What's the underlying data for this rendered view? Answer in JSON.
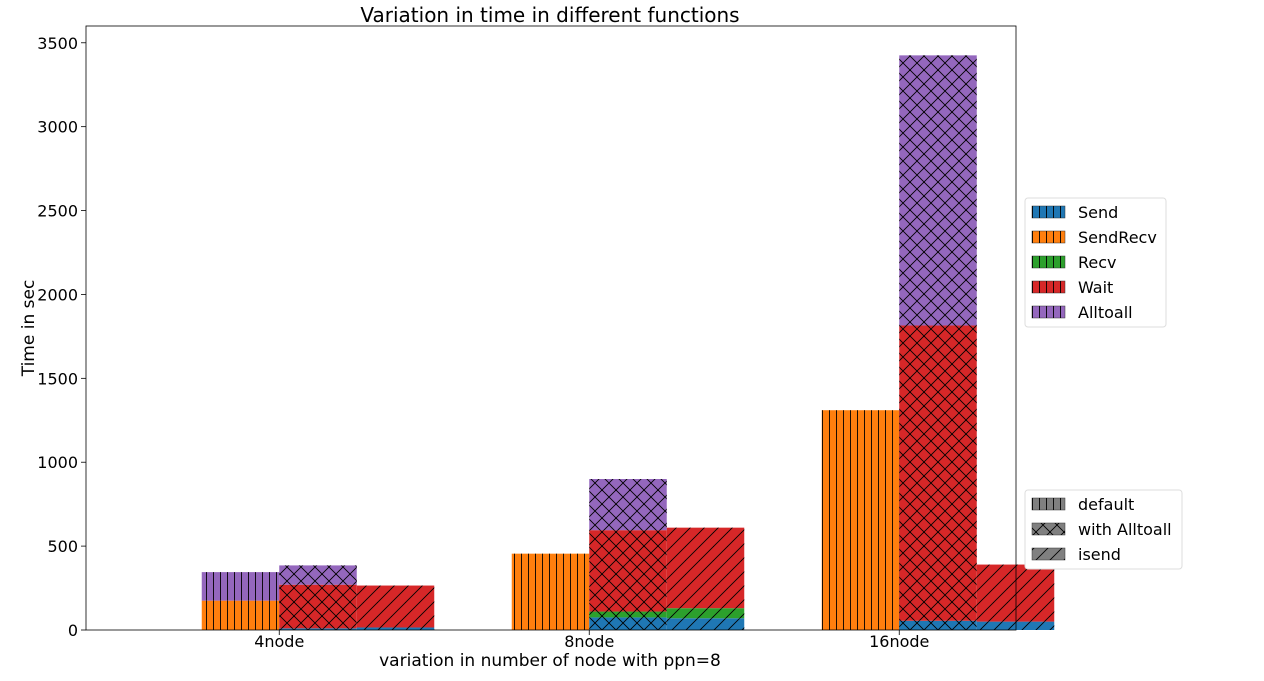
{
  "chart_data": {
    "type": "bar",
    "title": "Variation in time in different functions",
    "xlabel": "variation in number of node with ppn=8",
    "ylabel": "Time in sec",
    "ylim": [
      0,
      3600
    ],
    "yticks": [
      0,
      500,
      1000,
      1500,
      2000,
      2500,
      3000,
      3500
    ],
    "categories": [
      "4node",
      "8node",
      "16node"
    ],
    "stacked": true,
    "grid": false,
    "variants": [
      {
        "name": "default",
        "hatch": "vertical"
      },
      {
        "name": "with Alltoall",
        "hatch": "cross"
      },
      {
        "name": "isend",
        "hatch": "diagonal"
      }
    ],
    "series": [
      {
        "name": "Send",
        "color": "#1f77b4"
      },
      {
        "name": "SendRecv",
        "color": "#ff7f0e"
      },
      {
        "name": "Recv",
        "color": "#2ca02c"
      },
      {
        "name": "Wait",
        "color": "#d62728"
      },
      {
        "name": "Alltoall",
        "color": "#9467bd"
      }
    ],
    "values": {
      "default": {
        "Send": [
          0,
          0,
          0
        ],
        "SendRecv": [
          175,
          455,
          1310
        ],
        "Recv": [
          0,
          0,
          0
        ],
        "Wait": [
          0,
          0,
          0
        ],
        "Alltoall": [
          170,
          0,
          0
        ]
      },
      "with Alltoall": {
        "Send": [
          10,
          75,
          55
        ],
        "SendRecv": [
          0,
          0,
          0
        ],
        "Recv": [
          0,
          35,
          0
        ],
        "Wait": [
          260,
          485,
          1760
        ],
        "Alltoall": [
          115,
          305,
          1610
        ]
      },
      "isend": {
        "Send": [
          15,
          70,
          50
        ],
        "SendRecv": [
          0,
          0,
          0
        ],
        "Recv": [
          0,
          60,
          0
        ],
        "Wait": [
          250,
          480,
          340
        ],
        "Alltoall": [
          0,
          0,
          0
        ]
      }
    },
    "legend_placement": "right"
  }
}
